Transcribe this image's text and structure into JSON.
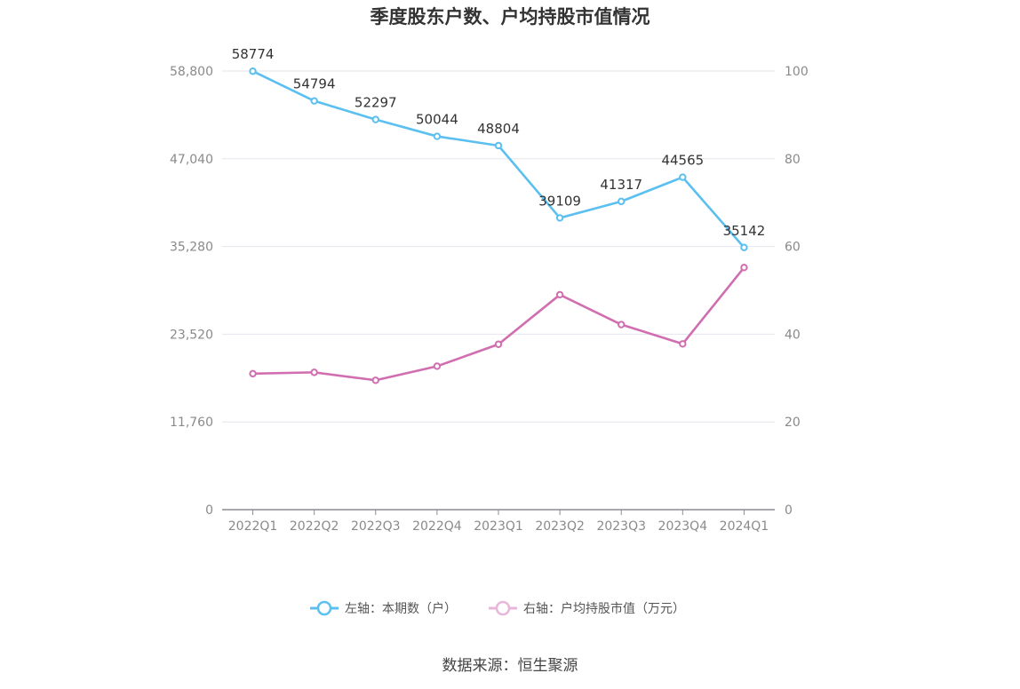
{
  "chart_data": {
    "type": "line",
    "title": "季度股东户数、户均持股市值情况",
    "categories": [
      "2022Q1",
      "2022Q2",
      "2022Q3",
      "2022Q4",
      "2023Q1",
      "2023Q2",
      "2023Q3",
      "2023Q4",
      "2024Q1"
    ],
    "left_axis": {
      "min": 0,
      "max": 58800,
      "ticks": [
        "0",
        "11,760",
        "23,520",
        "35,280",
        "47,040",
        "58,800"
      ],
      "tick_values": [
        0,
        11760,
        23520,
        35280,
        47040,
        58800
      ]
    },
    "right_axis": {
      "min": 0,
      "max": 100,
      "ticks": [
        "0",
        "20",
        "40",
        "60",
        "80",
        "100"
      ],
      "tick_values": [
        0,
        20,
        40,
        60,
        80,
        100
      ]
    },
    "grid": true,
    "legend_position": "bottom",
    "series": [
      {
        "name": "左轴：本期数（户）",
        "axis": "left",
        "color": "#5bc0f0",
        "values": [
          58774,
          54794,
          52297,
          50044,
          48804,
          39109,
          41317,
          44565,
          35142
        ],
        "labels": [
          "58774",
          "54794",
          "52297",
          "50044",
          "48804",
          "39109",
          "41317",
          "44565",
          "35142"
        ]
      },
      {
        "name": "右轴：户均持股市值（万元）",
        "axis": "right",
        "color": "#d16eb0",
        "values": [
          31.0,
          31.3,
          29.5,
          32.7,
          37.7,
          49.0,
          42.2,
          37.8,
          55.2
        ]
      }
    ],
    "source": "数据来源：恒生聚源"
  }
}
